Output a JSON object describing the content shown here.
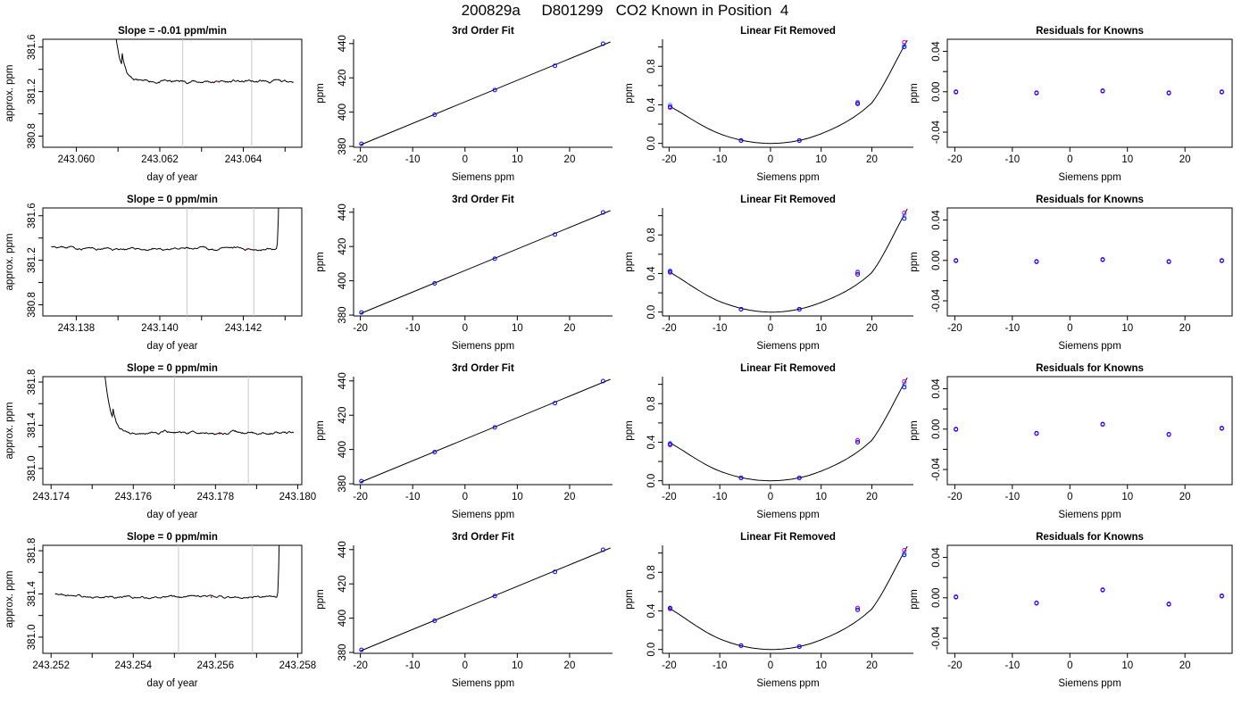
{
  "title": "200829a     D801299   CO2 Known in Position  4",
  "colors": {
    "line": "#000000",
    "vline": "#c8c8c8",
    "point_blue": "#0000ff",
    "point_magenta": "#cc00cc",
    "point_cyan": "#44aaee",
    "point_red": "#ff0000"
  },
  "rows": [
    {
      "trace": {
        "title": "Slope =  -0.01  ppm/min",
        "xlabel": "day of year",
        "ylabel": "approx. ppm",
        "xlim": [
          243.0592,
          243.0654
        ],
        "ylim": [
          380.7,
          381.67
        ],
        "xticks": [
          243.06,
          243.062,
          243.064
        ],
        "xticklabels": [
          "243.060",
          "243.062",
          "243.064"
        ],
        "xminor": [
          243.061,
          243.063,
          243.065
        ],
        "yticks": [
          380.8,
          381.2,
          381.6
        ],
        "yticklabels": [
          "380.8",
          "381.2",
          "381.6"
        ],
        "yminor": [
          381.0,
          381.4
        ],
        "vlines": [
          243.06255,
          243.0642
        ],
        "trace_start": 243.0604,
        "trace_end": 243.0652,
        "mode": "decay",
        "event_x": 243.0611,
        "baseline": 381.29,
        "drift": 0.03,
        "noise": 0.012,
        "seed": 11,
        "red_x": 243.0634
      },
      "fit": {
        "title": "3rd Order Fit",
        "xlabel": "Siemens ppm",
        "ylabel": "ppm",
        "x": [
          -19.8,
          -5.8,
          5.7,
          17.2,
          26.4
        ],
        "y": [
          381.5,
          398.5,
          412.9,
          427.0,
          439.9
        ],
        "xlim": [
          -21.3,
          28.2
        ],
        "ylim": [
          379.5,
          442.5
        ],
        "xticks": [
          -20,
          -10,
          0,
          10,
          20
        ],
        "yticks": [
          380,
          400,
          420,
          440
        ]
      },
      "linear_removed": {
        "title": "Linear Fit Removed",
        "xlabel": "Siemens ppm",
        "ylabel": "ppm",
        "x": [
          -19.8,
          -5.8,
          5.7,
          17.2,
          26.4
        ],
        "y_blue": [
          0.38,
          0.03,
          0.03,
          0.41,
          1.0
        ],
        "y_magenta": [
          0.37,
          0.03,
          0.03,
          0.42,
          1.05
        ],
        "y_cyan": [
          0.4,
          0.03,
          0.03,
          0.43,
          1.02
        ],
        "curve_x": [
          -20,
          -10,
          0,
          10,
          20,
          27
        ],
        "curve_y": [
          0.39,
          0.1,
          0.0,
          0.1,
          0.42,
          1.07
        ],
        "xlim": [
          -21.3,
          28.2
        ],
        "ylim": [
          -0.04,
          1.08
        ],
        "xticks": [
          -20,
          -10,
          0,
          10,
          20
        ],
        "yticks": [
          0.0,
          0.4,
          0.8
        ],
        "yticklabels": [
          "0.0",
          "0.4",
          "0.8"
        ],
        "yminor": [
          0.2,
          0.6,
          1.0
        ]
      },
      "residuals": {
        "title": "Residuals for Knowns",
        "xlabel": "Siemens ppm",
        "ylabel": "ppm",
        "x": [
          -19.8,
          -5.8,
          5.7,
          17.2,
          26.4
        ],
        "y": [
          0.0,
          -0.001,
          0.001,
          -0.001,
          0.0
        ],
        "xlim": [
          -21.3,
          28.2
        ],
        "ylim": [
          -0.055,
          0.052
        ],
        "xticks": [
          -20,
          -10,
          0,
          10,
          20
        ],
        "yticks": [
          -0.04,
          0.0,
          0.04
        ],
        "yticklabels": [
          "-0.04",
          "0.00",
          "0.04"
        ],
        "yminor": [
          -0.02,
          0.02
        ]
      }
    },
    {
      "trace": {
        "title": "Slope =  0  ppm/min",
        "xlabel": "day of year",
        "ylabel": "approx. ppm",
        "xlim": [
          243.1372,
          243.1434
        ],
        "ylim": [
          380.7,
          381.67
        ],
        "xticks": [
          243.138,
          243.14,
          243.142
        ],
        "xticklabels": [
          "243.138",
          "243.140",
          "243.142"
        ],
        "xminor": [
          243.139,
          243.141,
          243.143
        ],
        "yticks": [
          380.8,
          381.2,
          381.6
        ],
        "yticklabels": [
          "380.8",
          "381.2",
          "381.6"
        ],
        "yminor": [
          381.0,
          381.4
        ],
        "vlines": [
          243.14065,
          243.14225
        ],
        "trace_start": 243.1374,
        "trace_end": 243.1431,
        "mode": "rise",
        "event_x": 243.1428,
        "baseline": 381.3,
        "drift": 0.08,
        "noise": 0.012,
        "seed": 23,
        "red_x": 243.1421
      },
      "fit": {
        "title": "3rd Order Fit",
        "xlabel": "Siemens ppm",
        "ylabel": "ppm",
        "x": [
          -19.8,
          -5.8,
          5.7,
          17.2,
          26.4
        ],
        "y": [
          381.5,
          398.5,
          412.9,
          427.0,
          439.9
        ],
        "xlim": [
          -21.3,
          28.2
        ],
        "ylim": [
          379.5,
          442.5
        ],
        "xticks": [
          -20,
          -10,
          0,
          10,
          20
        ],
        "yticks": [
          380,
          400,
          420,
          440
        ]
      },
      "linear_removed": {
        "title": "Linear Fit Removed",
        "xlabel": "Siemens ppm",
        "ylabel": "ppm",
        "x": [
          -19.8,
          -5.8,
          5.7,
          17.2,
          26.4
        ],
        "y_blue": [
          0.42,
          0.03,
          0.03,
          0.39,
          0.97
        ],
        "y_magenta": [
          0.41,
          0.03,
          0.03,
          0.41,
          1.03
        ],
        "y_cyan": [
          0.43,
          0.03,
          0.03,
          0.42,
          1.0
        ],
        "curve_x": [
          -20,
          -10,
          0,
          10,
          20,
          27
        ],
        "curve_y": [
          0.42,
          0.11,
          0.0,
          0.1,
          0.41,
          1.07
        ],
        "xlim": [
          -21.3,
          28.2
        ],
        "ylim": [
          -0.04,
          1.08
        ],
        "xticks": [
          -20,
          -10,
          0,
          10,
          20
        ],
        "yticks": [
          0.0,
          0.4,
          0.8
        ],
        "yticklabels": [
          "0.0",
          "0.4",
          "0.8"
        ],
        "yminor": [
          0.2,
          0.6,
          1.0
        ]
      },
      "residuals": {
        "title": "Residuals for Knowns",
        "xlabel": "Siemens ppm",
        "ylabel": "ppm",
        "x": [
          -19.8,
          -5.8,
          5.7,
          17.2,
          26.4
        ],
        "y": [
          0.0,
          -0.001,
          0.001,
          -0.001,
          0.0
        ],
        "xlim": [
          -21.3,
          28.2
        ],
        "ylim": [
          -0.055,
          0.052
        ],
        "xticks": [
          -20,
          -10,
          0,
          10,
          20
        ],
        "yticks": [
          -0.04,
          0.0,
          0.04
        ],
        "yticklabels": [
          "-0.04",
          "0.00",
          "0.04"
        ],
        "yminor": [
          -0.02,
          0.02
        ]
      }
    },
    {
      "trace": {
        "title": "Slope =  0  ppm/min",
        "xlabel": "day of year",
        "ylabel": "approx. ppm",
        "xlim": [
          243.1738,
          243.1801
        ],
        "ylim": [
          380.85,
          381.85
        ],
        "xticks": [
          243.174,
          243.176,
          243.178,
          243.18
        ],
        "xticklabels": [
          "243.174",
          "243.176",
          "243.178",
          "243.180"
        ],
        "xminor": [
          243.175,
          243.177,
          243.179
        ],
        "yticks": [
          381.0,
          381.4,
          381.8
        ],
        "yticklabels": [
          "381.0",
          "381.4",
          "381.8"
        ],
        "yminor": [
          381.2,
          381.6
        ],
        "vlines": [
          243.177,
          243.1788
        ],
        "trace_start": 243.175,
        "trace_end": 243.1799,
        "mode": "decay",
        "event_x": 243.1755,
        "baseline": 381.33,
        "drift": 0.03,
        "noise": 0.012,
        "seed": 37,
        "red_x": 243.1781
      },
      "fit": {
        "title": "3rd Order Fit",
        "xlabel": "Siemens ppm",
        "ylabel": "ppm",
        "x": [
          -19.8,
          -5.8,
          5.7,
          17.2,
          26.4
        ],
        "y": [
          381.5,
          398.5,
          412.9,
          427.0,
          439.9
        ],
        "xlim": [
          -21.3,
          28.2
        ],
        "ylim": [
          379.5,
          442.5
        ],
        "xticks": [
          -20,
          -10,
          0,
          10,
          20
        ],
        "yticks": [
          380,
          400,
          420,
          440
        ]
      },
      "linear_removed": {
        "title": "Linear Fit Removed",
        "xlabel": "Siemens ppm",
        "ylabel": "ppm",
        "x": [
          -19.8,
          -5.8,
          5.7,
          17.2,
          26.4
        ],
        "y_blue": [
          0.38,
          0.03,
          0.03,
          0.4,
          0.97
        ],
        "y_magenta": [
          0.37,
          0.03,
          0.03,
          0.42,
          1.03
        ],
        "y_cyan": [
          0.39,
          0.03,
          0.03,
          0.42,
          1.0
        ],
        "curve_x": [
          -20,
          -10,
          0,
          10,
          20,
          27
        ],
        "curve_y": [
          0.4,
          0.1,
          0.0,
          0.1,
          0.42,
          1.07
        ],
        "xlim": [
          -21.3,
          28.2
        ],
        "ylim": [
          -0.04,
          1.08
        ],
        "xticks": [
          -20,
          -10,
          0,
          10,
          20
        ],
        "yticks": [
          0.0,
          0.4,
          0.8
        ],
        "yticklabels": [
          "0.0",
          "0.4",
          "0.8"
        ],
        "yminor": [
          0.2,
          0.6,
          1.0
        ]
      },
      "residuals": {
        "title": "Residuals for Knowns",
        "xlabel": "Siemens ppm",
        "ylabel": "ppm",
        "x": [
          -19.8,
          -5.8,
          5.7,
          17.2,
          26.4
        ],
        "y": [
          0.0,
          -0.004,
          0.005,
          -0.005,
          0.001
        ],
        "xlim": [
          -21.3,
          28.2
        ],
        "ylim": [
          -0.055,
          0.052
        ],
        "xticks": [
          -20,
          -10,
          0,
          10,
          20
        ],
        "yticks": [
          -0.04,
          0.0,
          0.04
        ],
        "yticklabels": [
          "-0.04",
          "0.00",
          "0.04"
        ],
        "yminor": [
          -0.02,
          0.02
        ]
      }
    },
    {
      "trace": {
        "title": "Slope =  0  ppm/min",
        "xlabel": "day of year",
        "ylabel": "approx. ppm",
        "xlim": [
          243.2518,
          243.2581
        ],
        "ylim": [
          380.85,
          381.85
        ],
        "xticks": [
          243.252,
          243.254,
          243.256,
          243.258
        ],
        "xticklabels": [
          "243.252",
          "243.254",
          "243.256",
          "243.258"
        ],
        "xminor": [
          243.253,
          243.255,
          243.257
        ],
        "yticks": [
          381.0,
          381.4,
          381.8
        ],
        "yticklabels": [
          "381.0",
          "381.4",
          "381.8"
        ],
        "yminor": [
          381.2,
          381.6
        ],
        "vlines": [
          243.2551,
          243.2569
        ],
        "trace_start": 243.2521,
        "trace_end": 243.2578,
        "mode": "rise",
        "event_x": 243.2575,
        "baseline": 381.37,
        "drift": 0.08,
        "noise": 0.012,
        "seed": 53,
        "red_x": 243.2559
      },
      "fit": {
        "title": "3rd Order Fit",
        "xlabel": "Siemens ppm",
        "ylabel": "ppm",
        "x": [
          -19.8,
          -5.8,
          5.7,
          17.2,
          26.4
        ],
        "y": [
          381.5,
          398.5,
          412.9,
          427.0,
          439.9
        ],
        "xlim": [
          -21.3,
          28.2
        ],
        "ylim": [
          379.5,
          442.5
        ],
        "xticks": [
          -20,
          -10,
          0,
          10,
          20
        ],
        "yticks": [
          380,
          400,
          420,
          440
        ]
      },
      "linear_removed": {
        "title": "Linear Fit Removed",
        "xlabel": "Siemens ppm",
        "ylabel": "ppm",
        "x": [
          -19.8,
          -5.8,
          5.7,
          17.2,
          26.4
        ],
        "y_blue": [
          0.43,
          0.04,
          0.03,
          0.41,
          0.98
        ],
        "y_magenta": [
          0.42,
          0.04,
          0.03,
          0.43,
          1.03
        ],
        "y_cyan": [
          0.43,
          0.04,
          0.03,
          0.43,
          1.0
        ],
        "curve_x": [
          -20,
          -10,
          0,
          10,
          20,
          27
        ],
        "curve_y": [
          0.43,
          0.11,
          0.0,
          0.1,
          0.42,
          1.07
        ],
        "xlim": [
          -21.3,
          28.2
        ],
        "ylim": [
          -0.04,
          1.08
        ],
        "xticks": [
          -20,
          -10,
          0,
          10,
          20
        ],
        "yticks": [
          0.0,
          0.4,
          0.8
        ],
        "yticklabels": [
          "0.0",
          "0.4",
          "0.8"
        ],
        "yminor": [
          0.2,
          0.6,
          1.0
        ]
      },
      "residuals": {
        "title": "Residuals for Knowns",
        "xlabel": "Siemens ppm",
        "ylabel": "ppm",
        "x": [
          -19.8,
          -5.8,
          5.7,
          17.2,
          26.4
        ],
        "y": [
          0.001,
          -0.005,
          0.008,
          -0.006,
          0.002
        ],
        "xlim": [
          -21.3,
          28.2
        ],
        "ylim": [
          -0.055,
          0.052
        ],
        "xticks": [
          -20,
          -10,
          0,
          10,
          20
        ],
        "yticks": [
          -0.04,
          0.0,
          0.04
        ],
        "yticklabels": [
          "-0.04",
          "0.00",
          "0.04"
        ],
        "yminor": [
          -0.02,
          0.02
        ]
      }
    }
  ],
  "chart_data": [
    {
      "type": "line",
      "title": "Slope =  -0.01  ppm/min",
      "xlabel": "day of year",
      "ylabel": "approx. ppm",
      "x_range": [
        243.0604,
        243.0652
      ],
      "ylim": [
        380.7,
        381.67
      ],
      "level": 381.3,
      "vlines_x": [
        243.06255,
        243.0642
      ]
    },
    {
      "type": "scatter",
      "title": "3rd Order Fit",
      "xlabel": "Siemens ppm",
      "ylabel": "ppm",
      "x": [
        -19.8,
        -5.8,
        5.7,
        17.2,
        26.4
      ],
      "y": [
        381.5,
        398.5,
        412.9,
        427.0,
        439.9
      ]
    },
    {
      "type": "scatter",
      "title": "Linear Fit Removed",
      "xlabel": "Siemens ppm",
      "ylabel": "ppm",
      "x": [
        -19.8,
        -5.8,
        5.7,
        17.2,
        26.4
      ],
      "y": [
        0.38,
        0.03,
        0.03,
        0.41,
        1.0
      ]
    },
    {
      "type": "scatter",
      "title": "Residuals for Knowns",
      "xlabel": "Siemens ppm",
      "ylabel": "ppm",
      "x": [
        -19.8,
        -5.8,
        5.7,
        17.2,
        26.4
      ],
      "y": [
        0.0,
        -0.001,
        0.001,
        -0.001,
        0.0
      ]
    },
    {
      "type": "line",
      "title": "Slope =  0  ppm/min",
      "xlabel": "day of year",
      "ylabel": "approx. ppm",
      "x_range": [
        243.1374,
        243.1431
      ],
      "ylim": [
        380.7,
        381.67
      ],
      "level": 381.3,
      "vlines_x": [
        243.14065,
        243.14225
      ]
    },
    {
      "type": "line",
      "title": "Slope =  0  ppm/min",
      "xlabel": "day of year",
      "ylabel": "approx. ppm",
      "x_range": [
        243.175,
        243.1799
      ],
      "ylim": [
        380.85,
        381.85
      ],
      "level": 381.33,
      "vlines_x": [
        243.177,
        243.1788
      ]
    },
    {
      "type": "line",
      "title": "Slope =  0  ppm/min",
      "xlabel": "day of year",
      "ylabel": "approx. ppm",
      "x_range": [
        243.2521,
        243.2578
      ],
      "ylim": [
        380.85,
        381.85
      ],
      "level": 381.37,
      "vlines_x": [
        243.2551,
        243.2569
      ]
    }
  ]
}
